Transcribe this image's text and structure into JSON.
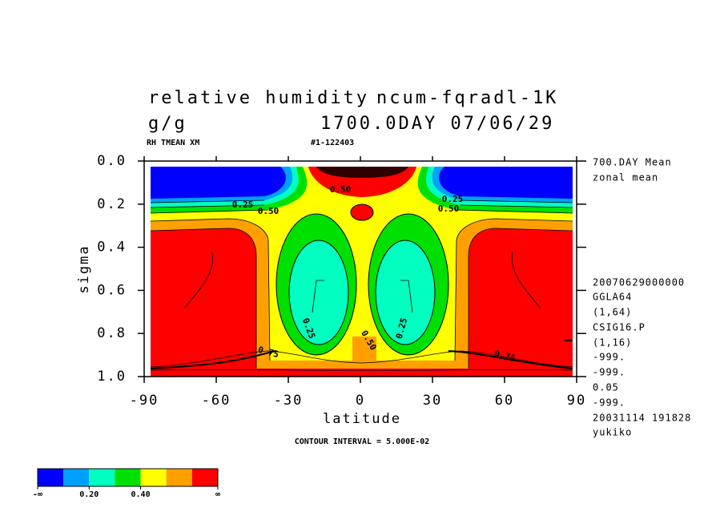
{
  "chart_data": {
    "type": "contour",
    "title": "relative humidity",
    "subtitle": "ncum-fqradl-1K",
    "units": "g/g",
    "time_label": "1700.0DAY 07/06/29",
    "variable_label": "RH TMEAN XM",
    "run_label": "#1-122403",
    "x_label": "latitude",
    "y_label": "sigma",
    "xlim": [
      -90,
      90
    ],
    "xticks": [
      -90,
      -60,
      -30,
      0,
      30,
      60,
      90
    ],
    "ylim": [
      0,
      1
    ],
    "yticks": [
      {
        "value": 0,
        "label": "0.0"
      },
      0.2,
      0.4,
      0.6,
      0.8,
      {
        "value": 1,
        "label": "1.0"
      }
    ],
    "y_inverted": true,
    "footer": "CONTOUR INTERVAL = 5.000E-02",
    "info": [
      "700.DAY Mean",
      "zonal mean",
      "20070629000000",
      "GGLA64",
      "(1,64)",
      "CSIG16.P",
      "(1,16)",
      "-999.",
      "-999.",
      "0.05",
      "-999.",
      "20031114 191828",
      "yukiko"
    ],
    "colorbar": {
      "colors": [
        "#0000ff",
        "#00a0ff",
        "#00ffc0",
        "#00e000",
        "#ffff00",
        "#ffa000",
        "#ff0000"
      ],
      "labels": [
        "-∞",
        "0.20",
        "0.40",
        "∞"
      ]
    },
    "contour_labels": [
      "0.50",
      "0.25",
      "0.50",
      "0.25",
      "0.50",
      "0.25",
      "0.50",
      "0.25",
      "0.75",
      "0.75"
    ]
  }
}
